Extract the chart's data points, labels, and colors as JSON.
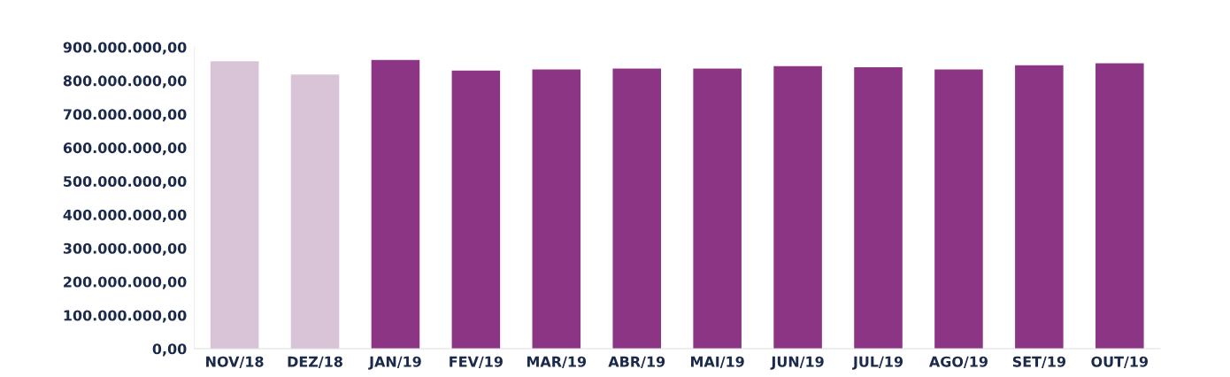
{
  "chart_data": {
    "type": "bar",
    "categories": [
      "NOV/18",
      "DEZ/18",
      "JAN/19",
      "FEV/19",
      "MAR/19",
      "ABR/19",
      "MAI/19",
      "JUN/19",
      "JUL/19",
      "AGO/19",
      "SET/19",
      "OUT/19"
    ],
    "values": [
      858000000,
      818000000,
      862000000,
      830000000,
      833000000,
      836000000,
      836000000,
      843000000,
      840000000,
      833000000,
      846000000,
      852000000
    ],
    "colors": [
      "#d8c4d6",
      "#d8c4d6",
      "#8b3584",
      "#8b3584",
      "#8b3584",
      "#8b3584",
      "#8b3584",
      "#8b3584",
      "#8b3584",
      "#8b3584",
      "#8b3584",
      "#8b3584"
    ],
    "ylim": [
      0,
      900000000
    ],
    "yticks": [
      {
        "value": 0,
        "label": "0,00"
      },
      {
        "value": 100000000,
        "label": "100.000.000,00"
      },
      {
        "value": 200000000,
        "label": "200.000.000,00"
      },
      {
        "value": 300000000,
        "label": "300.000.000,00"
      },
      {
        "value": 400000000,
        "label": "400.000.000,00"
      },
      {
        "value": 500000000,
        "label": "500.000.000,00"
      },
      {
        "value": 600000000,
        "label": "600.000.000,00"
      },
      {
        "value": 700000000,
        "label": "700.000.000,00"
      },
      {
        "value": 800000000,
        "label": "800.000.000,00"
      },
      {
        "value": 900000000,
        "label": "900.000.000,00"
      }
    ],
    "grid": false,
    "legend": false
  }
}
